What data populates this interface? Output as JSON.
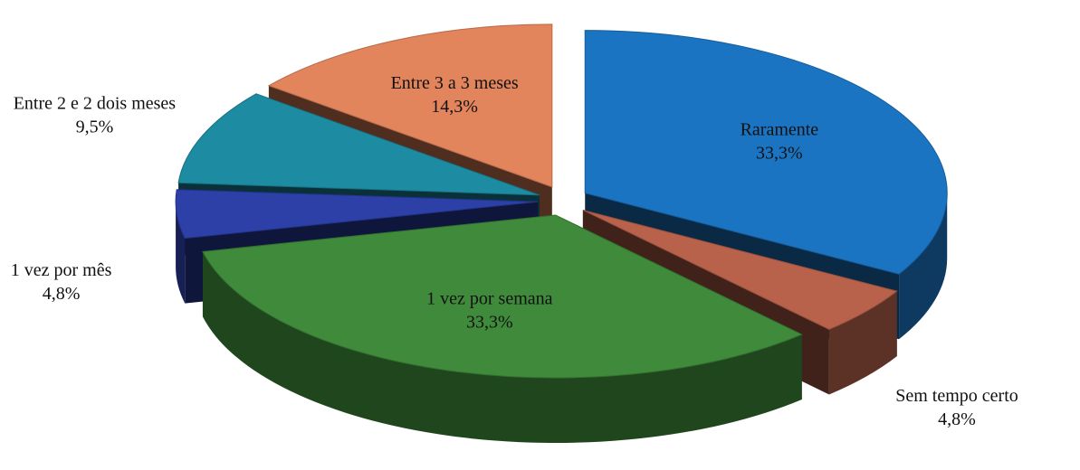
{
  "chart_data": {
    "type": "pie",
    "categories": [
      "Raramente",
      "Sem tempo certo",
      "1 vez por semana",
      "1 vez por mês",
      "Entre 2 e 2 dois meses",
      "Entre 3 a 3 meses"
    ],
    "values": [
      33.3,
      4.8,
      33.3,
      4.8,
      9.5,
      14.3
    ],
    "value_labels": [
      "33,3%",
      "4,8%",
      "33,3%",
      "4,8%",
      "9,5%",
      "14,3%"
    ],
    "colors": [
      "#1b74c2",
      "#b8614b",
      "#3f8b3b",
      "#2c40a8",
      "#1d8ca2",
      "#e2845c"
    ]
  }
}
